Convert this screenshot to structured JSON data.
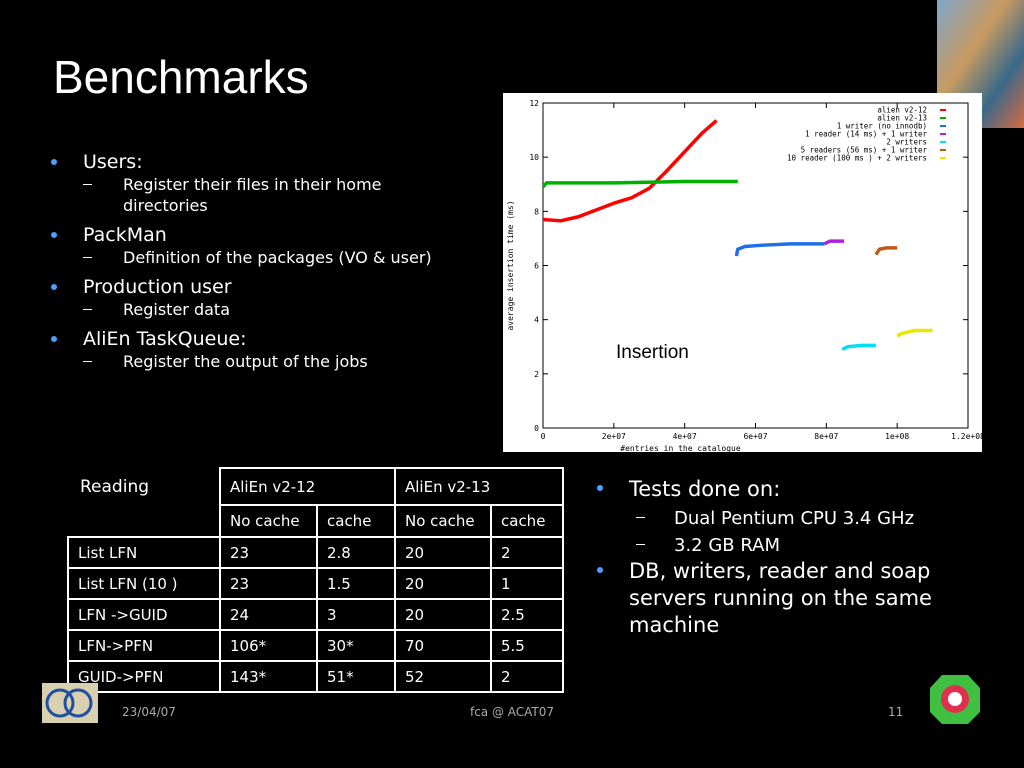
{
  "title": "Benchmarks",
  "bullets": [
    {
      "text": "Users:",
      "sub": [
        "Register their files in their home directories"
      ]
    },
    {
      "text": "PackMan",
      "sub": [
        "Definition of the packages (VO & user)"
      ]
    },
    {
      "text": "Production user",
      "sub": [
        "Register data"
      ]
    },
    {
      "text": "AliEn TaskQueue:",
      "sub": [
        "Register the output of the jobs"
      ]
    }
  ],
  "chart_data": {
    "type": "line",
    "xlabel": "#entries in the catalogue",
    "ylabel": "average insertion time (ms)",
    "annotation": "Insertion",
    "xlim": [
      0,
      120000000
    ],
    "ylim": [
      0,
      12
    ],
    "xticks": [
      0,
      {
        "value": 20000000,
        "label": "2e+07"
      },
      {
        "value": 40000000,
        "label": "4e+07"
      },
      {
        "value": 60000000,
        "label": "6e+07"
      },
      {
        "value": 80000000,
        "label": "8e+07"
      },
      {
        "value": 100000000,
        "label": "1e+08"
      },
      {
        "value": 120000000,
        "label": "1.2e+08"
      }
    ],
    "yticks": [
      0,
      2,
      4,
      6,
      8,
      10,
      12
    ],
    "series": [
      {
        "name": "alien v2-12",
        "color": "#ff0000",
        "x": [
          0,
          5000000,
          10000000,
          15000000,
          20000000,
          25000000,
          30000000,
          35000000,
          40000000,
          45000000,
          49000000
        ],
        "values": [
          7.7,
          7.65,
          7.8,
          8.05,
          8.3,
          8.5,
          8.85,
          9.5,
          10.2,
          10.9,
          11.35
        ]
      },
      {
        "name": "alien v2-13",
        "color": "#00b000",
        "x": [
          0,
          1000000,
          5000000,
          20000000,
          40000000,
          55000000
        ],
        "values": [
          8.9,
          9.05,
          9.05,
          9.05,
          9.1,
          9.1
        ]
      },
      {
        "name": "1 writer (no innodb)",
        "color": "#1e6ee8",
        "x": [
          54600000,
          55000000,
          57000000,
          62000000,
          70000000,
          79500000
        ],
        "values": [
          6.35,
          6.6,
          6.7,
          6.75,
          6.8,
          6.8
        ]
      },
      {
        "name": "1 reader (14 ms) + 1 writer",
        "color": "#b020e0",
        "x": [
          79500000,
          81000000,
          85000000
        ],
        "values": [
          6.8,
          6.9,
          6.9
        ]
      },
      {
        "name": "2 writers",
        "color": "#00e0f0",
        "x": [
          84500000,
          86000000,
          90000000,
          94000000
        ],
        "values": [
          2.9,
          3.0,
          3.05,
          3.05
        ]
      },
      {
        "name": "5 readers (56 ms) + 1 writer",
        "color": "#c05a18",
        "x": [
          94000000,
          95000000,
          97000000,
          100000000
        ],
        "values": [
          6.4,
          6.6,
          6.65,
          6.65
        ]
      },
      {
        "name": "10 reader (100 ms ) + 2 writers",
        "color": "#e8e800",
        "x": [
          100000000,
          101500000,
          105000000,
          110000000
        ],
        "values": [
          3.4,
          3.5,
          3.6,
          3.6
        ]
      }
    ]
  },
  "table": {
    "caption": "Reading",
    "groups": [
      "AliEn v2-12",
      "AliEn v2-13"
    ],
    "subheaders": [
      "No cache",
      "cache",
      "No cache",
      "cache"
    ],
    "rows": [
      [
        "List LFN",
        "23",
        "2.8",
        "20",
        "2"
      ],
      [
        "List LFN (10 )",
        "23",
        "1.5",
        "20",
        "1"
      ],
      [
        "LFN ->GUID",
        "24",
        "3",
        "20",
        "2.5"
      ],
      [
        "LFN->PFN",
        "106*",
        "30*",
        "70",
        "5.5"
      ],
      [
        "GUID->PFN",
        "143*",
        "51*",
        "52",
        "2"
      ]
    ]
  },
  "notes": [
    {
      "text": "Tests done on:",
      "sub": [
        "Dual Pentium CPU  3.4 GHz",
        "3.2 GB RAM"
      ]
    },
    {
      "text": "DB, writers, reader and soap servers running on the same machine",
      "sub": []
    }
  ],
  "footer": {
    "date": "23/04/07",
    "center": "fca @ ACAT07",
    "page": "11"
  }
}
